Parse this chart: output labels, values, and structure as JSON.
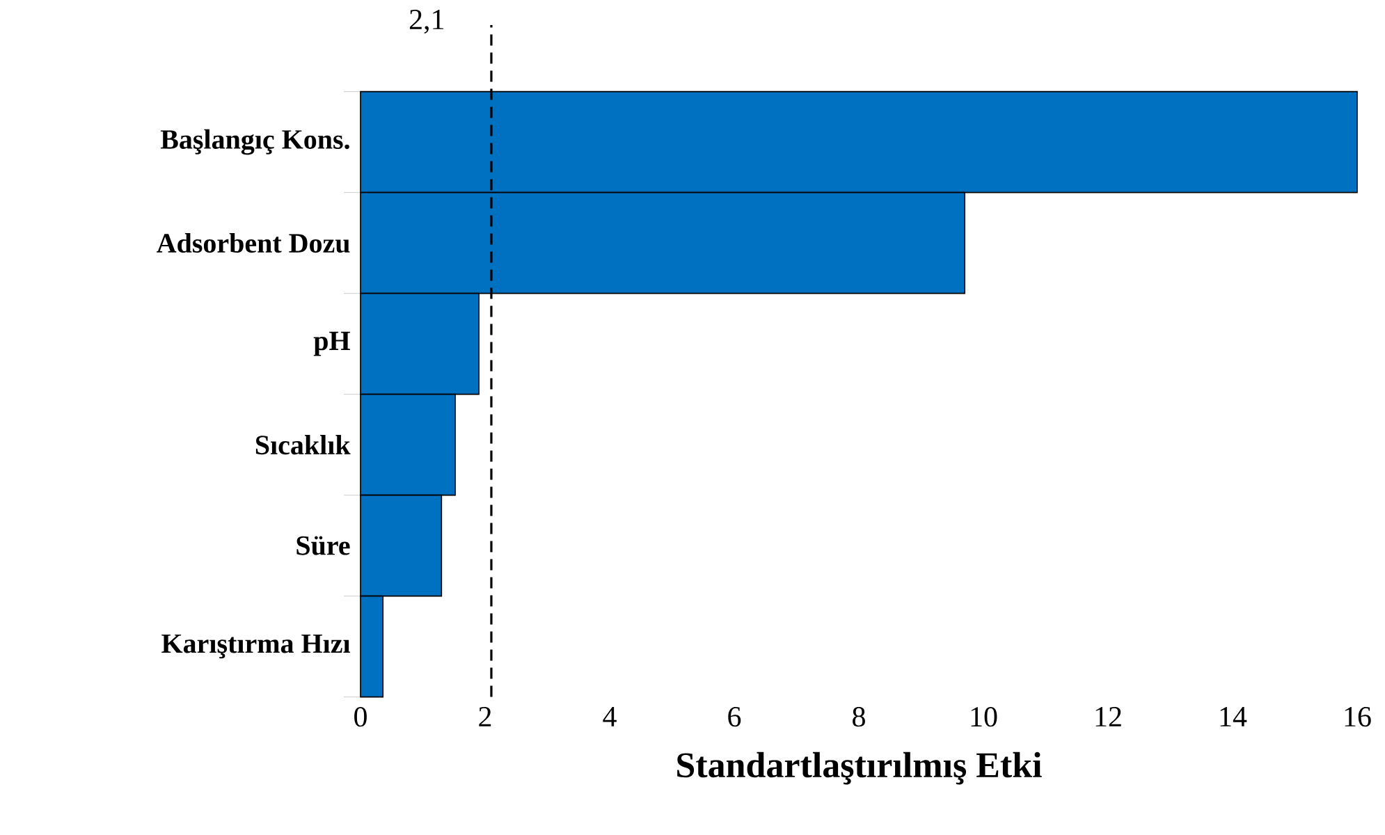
{
  "chart_data": {
    "type": "bar",
    "orientation": "horizontal",
    "xlabel": "Standartlaştırılmış Etki",
    "categories": [
      "Başlangıç Kons.",
      "Adsorbent Dozu",
      "pH",
      "Sıcaklık",
      "Süre",
      "Karıştırma Hızı"
    ],
    "values": [
      16.0,
      9.7,
      1.9,
      1.52,
      1.3,
      0.36
    ],
    "color": "#0070c0",
    "xlim": [
      0,
      16
    ],
    "xticks": [
      0,
      2,
      4,
      6,
      8,
      10,
      12,
      14,
      16
    ],
    "ref_lines": [
      {
        "axis": "x",
        "value": 2.1,
        "label": "2,1",
        "line_style": "dashed",
        "color": "#000000"
      }
    ],
    "grid": false
  }
}
